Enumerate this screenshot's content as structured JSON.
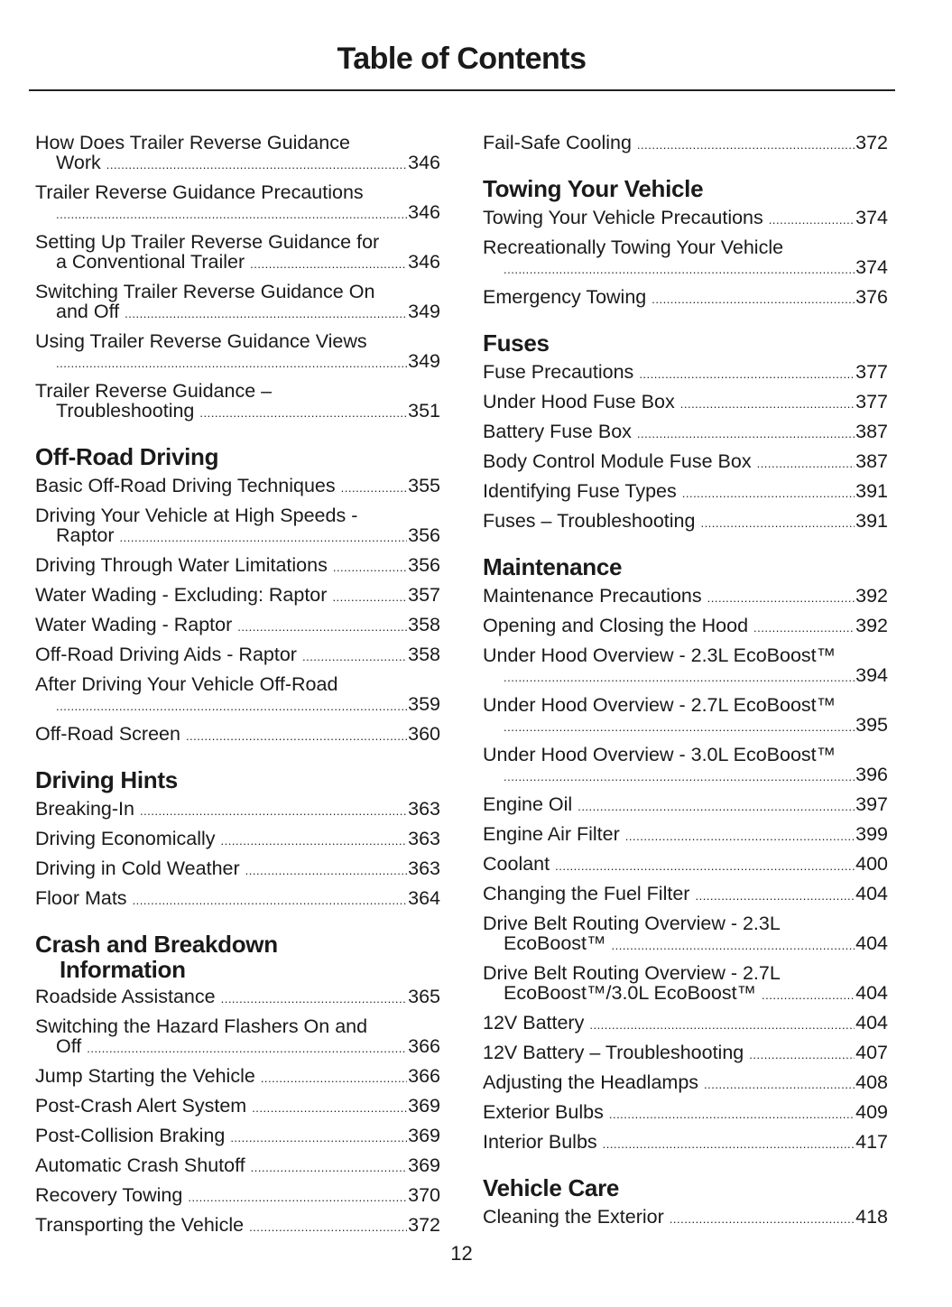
{
  "title": "Table of Contents",
  "page_number": "12",
  "columns": [
    [
      {
        "type": "entry",
        "text": "How Does Trailer Reverse Guidance",
        "cont": "Work",
        "page": "346"
      },
      {
        "type": "entry",
        "text": "Trailer Reverse Guidance Precautions",
        "cont": "",
        "page": "346"
      },
      {
        "type": "entry",
        "text": "Setting Up Trailer Reverse Guidance for",
        "cont": "a Conventional Trailer",
        "page": "346"
      },
      {
        "type": "entry",
        "text": "Switching Trailer Reverse Guidance On",
        "cont": "and Off",
        "page": "349"
      },
      {
        "type": "entry",
        "text": "Using Trailer Reverse Guidance Views",
        "cont": "",
        "page": "349"
      },
      {
        "type": "entry",
        "text": "Trailer Reverse Guidance –",
        "cont": "Troubleshooting",
        "page": "351"
      },
      {
        "type": "heading",
        "text": "Off-Road Driving"
      },
      {
        "type": "entry",
        "text": "Basic Off-Road Driving Techniques",
        "page": "355"
      },
      {
        "type": "entry",
        "text": "Driving Your Vehicle at High Speeds -",
        "cont": "Raptor",
        "page": "356"
      },
      {
        "type": "entry",
        "text": "Driving Through Water Limitations",
        "page": "356"
      },
      {
        "type": "entry",
        "text": "Water Wading - Excluding: Raptor",
        "page": "357"
      },
      {
        "type": "entry",
        "text": "Water Wading - Raptor",
        "page": "358"
      },
      {
        "type": "entry",
        "text": "Off-Road Driving Aids - Raptor",
        "page": "358"
      },
      {
        "type": "entry",
        "text": "After Driving Your Vehicle Off-Road",
        "cont": "",
        "page": "359"
      },
      {
        "type": "entry",
        "text": "Off-Road Screen",
        "page": "360"
      },
      {
        "type": "heading",
        "text": "Driving Hints"
      },
      {
        "type": "entry",
        "text": "Breaking-In",
        "page": "363"
      },
      {
        "type": "entry",
        "text": "Driving Economically",
        "page": "363"
      },
      {
        "type": "entry",
        "text": "Driving in Cold Weather",
        "page": "363"
      },
      {
        "type": "entry",
        "text": "Floor Mats",
        "page": "364"
      },
      {
        "type": "heading",
        "text": "Crash and Breakdown",
        "cont": "Information"
      },
      {
        "type": "entry",
        "text": "Roadside Assistance",
        "page": "365"
      },
      {
        "type": "entry",
        "text": "Switching the Hazard Flashers On and",
        "cont": "Off",
        "page": "366"
      },
      {
        "type": "entry",
        "text": "Jump Starting the Vehicle",
        "page": "366"
      },
      {
        "type": "entry",
        "text": "Post-Crash Alert System",
        "page": "369"
      },
      {
        "type": "entry",
        "text": "Post-Collision Braking",
        "page": "369"
      },
      {
        "type": "entry",
        "text": "Automatic Crash Shutoff",
        "page": "369"
      },
      {
        "type": "entry",
        "text": "Recovery Towing",
        "page": "370"
      },
      {
        "type": "entry",
        "text": "Transporting the Vehicle",
        "page": "372"
      }
    ],
    [
      {
        "type": "entry",
        "text": "Fail-Safe Cooling",
        "page": "372"
      },
      {
        "type": "heading",
        "text": "Towing Your Vehicle"
      },
      {
        "type": "entry",
        "text": "Towing Your Vehicle Precautions",
        "page": "374"
      },
      {
        "type": "entry",
        "text": "Recreationally Towing Your Vehicle",
        "cont": "",
        "page": "374"
      },
      {
        "type": "entry",
        "text": "Emergency Towing",
        "page": "376"
      },
      {
        "type": "heading",
        "text": "Fuses"
      },
      {
        "type": "entry",
        "text": "Fuse Precautions",
        "page": "377"
      },
      {
        "type": "entry",
        "text": "Under Hood Fuse Box",
        "page": "377"
      },
      {
        "type": "entry",
        "text": "Battery Fuse Box",
        "page": "387"
      },
      {
        "type": "entry",
        "text": "Body Control Module Fuse Box",
        "page": "387"
      },
      {
        "type": "entry",
        "text": "Identifying Fuse Types",
        "page": "391"
      },
      {
        "type": "entry",
        "text": "Fuses – Troubleshooting",
        "page": "391"
      },
      {
        "type": "heading",
        "text": "Maintenance"
      },
      {
        "type": "entry",
        "text": "Maintenance Precautions",
        "page": "392"
      },
      {
        "type": "entry",
        "text": "Opening and Closing the Hood",
        "page": "392"
      },
      {
        "type": "entry",
        "text": "Under Hood Overview - 2.3L EcoBoost™",
        "cont": "",
        "page": "394"
      },
      {
        "type": "entry",
        "text": "Under Hood Overview - 2.7L EcoBoost™",
        "cont": "",
        "page": "395"
      },
      {
        "type": "entry",
        "text": "Under Hood Overview - 3.0L EcoBoost™",
        "cont": "",
        "page": "396"
      },
      {
        "type": "entry",
        "text": "Engine Oil",
        "page": "397"
      },
      {
        "type": "entry",
        "text": "Engine Air Filter",
        "page": "399"
      },
      {
        "type": "entry",
        "text": "Coolant",
        "page": "400"
      },
      {
        "type": "entry",
        "text": "Changing the Fuel Filter",
        "page": "404"
      },
      {
        "type": "entry",
        "text": "Drive Belt Routing Overview - 2.3L",
        "cont": "EcoBoost™",
        "page": "404"
      },
      {
        "type": "entry",
        "text": "Drive Belt Routing Overview - 2.7L",
        "cont": "EcoBoost™/3.0L EcoBoost™",
        "page": "404"
      },
      {
        "type": "entry",
        "text": "12V Battery",
        "page": "404"
      },
      {
        "type": "entry",
        "text": "12V Battery – Troubleshooting",
        "page": "407"
      },
      {
        "type": "entry",
        "text": "Adjusting the Headlamps",
        "page": "408"
      },
      {
        "type": "entry",
        "text": "Exterior Bulbs",
        "page": "409"
      },
      {
        "type": "entry",
        "text": "Interior Bulbs",
        "page": "417"
      },
      {
        "type": "heading",
        "text": "Vehicle Care"
      },
      {
        "type": "entry",
        "text": "Cleaning the Exterior",
        "page": "418"
      }
    ]
  ]
}
